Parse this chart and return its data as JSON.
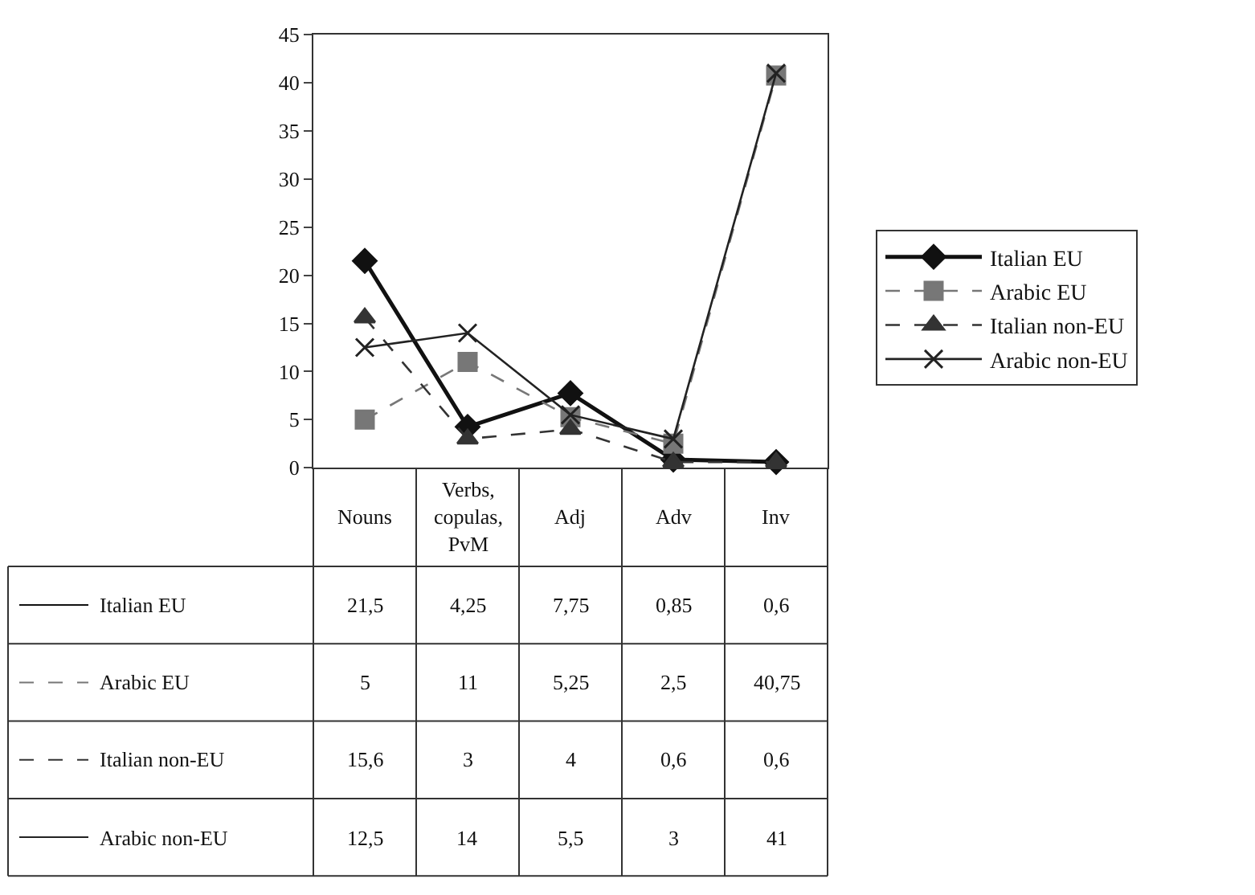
{
  "chart_data": {
    "type": "line",
    "categories": [
      "Nouns",
      "Verbs, copulas, PvM",
      "Adj",
      "Adv",
      "Inv"
    ],
    "series": [
      {
        "name": "Italian EU",
        "color": "#111111",
        "marker": "diamond",
        "line_style": "solid",
        "values": [
          21.5,
          4.25,
          7.75,
          0.85,
          0.6
        ],
        "value_labels": [
          "21,5",
          "4,25",
          "7,75",
          "0,85",
          "0,6"
        ]
      },
      {
        "name": "Arabic EU",
        "color": "#777777",
        "marker": "square",
        "line_style": "dashed",
        "values": [
          5,
          11,
          5.25,
          2.5,
          40.75
        ],
        "value_labels": [
          "5",
          "11",
          "5,25",
          "2,5",
          "40,75"
        ]
      },
      {
        "name": "Italian non-EU",
        "color": "#333333",
        "marker": "triangle",
        "line_style": "dashed",
        "values": [
          15.6,
          3,
          4,
          0.6,
          0.6
        ],
        "value_labels": [
          "15,6",
          "3",
          "4",
          "0,6",
          "0,6"
        ]
      },
      {
        "name": "Arabic non-EU",
        "color": "#222222",
        "marker": "cross",
        "line_style": "solid",
        "values": [
          12.5,
          14,
          5.5,
          3,
          41
        ],
        "value_labels": [
          "12,5",
          "14",
          "5,5",
          "3",
          "41"
        ]
      }
    ],
    "ylim": [
      0,
      45
    ],
    "yticks": [
      0,
      5,
      10,
      15,
      20,
      25,
      30,
      35,
      40,
      45
    ],
    "grid": false,
    "legend": "right"
  }
}
